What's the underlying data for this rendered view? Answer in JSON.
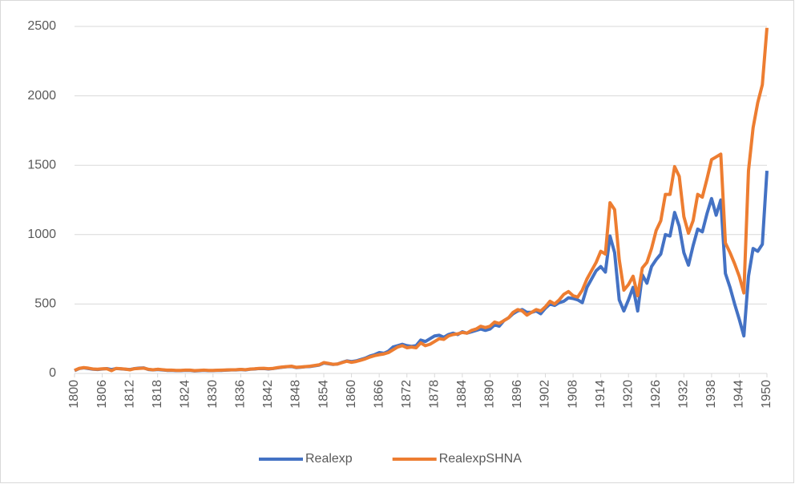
{
  "chart_data": {
    "type": "line",
    "x": [
      1800,
      1801,
      1802,
      1803,
      1804,
      1805,
      1806,
      1807,
      1808,
      1809,
      1810,
      1811,
      1812,
      1813,
      1814,
      1815,
      1816,
      1817,
      1818,
      1819,
      1820,
      1821,
      1822,
      1823,
      1824,
      1825,
      1826,
      1827,
      1828,
      1829,
      1830,
      1831,
      1832,
      1833,
      1834,
      1835,
      1836,
      1837,
      1838,
      1839,
      1840,
      1841,
      1842,
      1843,
      1844,
      1845,
      1846,
      1847,
      1848,
      1849,
      1850,
      1851,
      1852,
      1853,
      1854,
      1855,
      1856,
      1857,
      1858,
      1859,
      1860,
      1861,
      1862,
      1863,
      1864,
      1865,
      1866,
      1867,
      1868,
      1869,
      1870,
      1871,
      1872,
      1873,
      1874,
      1875,
      1876,
      1877,
      1878,
      1879,
      1880,
      1881,
      1882,
      1883,
      1884,
      1885,
      1886,
      1887,
      1888,
      1889,
      1890,
      1891,
      1892,
      1893,
      1894,
      1895,
      1896,
      1897,
      1898,
      1899,
      1900,
      1901,
      1902,
      1903,
      1904,
      1905,
      1906,
      1907,
      1908,
      1909,
      1910,
      1911,
      1912,
      1913,
      1914,
      1915,
      1916,
      1917,
      1918,
      1919,
      1920,
      1921,
      1922,
      1923,
      1924,
      1925,
      1926,
      1927,
      1928,
      1929,
      1930,
      1931,
      1932,
      1933,
      1934,
      1935,
      1936,
      1937,
      1938,
      1939,
      1940,
      1941,
      1942,
      1943,
      1944,
      1945,
      1946,
      1947,
      1948,
      1949,
      1950
    ],
    "xlim": [
      1800,
      1950
    ],
    "xticks": [
      1800,
      1806,
      1812,
      1818,
      1824,
      1830,
      1836,
      1842,
      1848,
      1854,
      1860,
      1866,
      1872,
      1878,
      1884,
      1890,
      1896,
      1902,
      1908,
      1914,
      1920,
      1926,
      1932,
      1938,
      1944,
      1950
    ],
    "ylim": [
      0,
      2500
    ],
    "yticks": [
      0,
      500,
      1000,
      1500,
      2000,
      2500
    ],
    "grid": true,
    "legend": "bottom",
    "series": [
      {
        "name": "Realexp",
        "color": "#4472c4",
        "values": [
          20,
          35,
          40,
          35,
          30,
          28,
          32,
          35,
          28,
          35,
          33,
          30,
          28,
          35,
          38,
          40,
          28,
          25,
          28,
          25,
          22,
          22,
          20,
          20,
          22,
          22,
          18,
          20,
          22,
          20,
          20,
          22,
          22,
          24,
          25,
          25,
          28,
          25,
          30,
          32,
          35,
          35,
          32,
          35,
          40,
          45,
          48,
          50,
          42,
          45,
          48,
          50,
          55,
          60,
          75,
          70,
          65,
          68,
          80,
          90,
          85,
          90,
          100,
          110,
          125,
          135,
          150,
          145,
          160,
          190,
          200,
          210,
          200,
          195,
          200,
          240,
          230,
          250,
          270,
          275,
          260,
          280,
          290,
          280,
          300,
          290,
          300,
          310,
          320,
          310,
          320,
          350,
          340,
          380,
          400,
          430,
          450,
          460,
          440,
          440,
          450,
          430,
          470,
          500,
          490,
          510,
          520,
          545,
          540,
          530,
          510,
          620,
          680,
          740,
          770,
          730,
          990,
          870,
          530,
          450,
          530,
          620,
          450,
          710,
          650,
          770,
          820,
          860,
          1000,
          990,
          1160,
          1060,
          870,
          780,
          920,
          1040,
          1020,
          1150,
          1260,
          1140,
          1250,
          720,
          620,
          500,
          390,
          270,
          700,
          900,
          880,
          930,
          1460
        ]
      },
      {
        "name": "RealexpSHNA",
        "color": "#ed7d31",
        "values": [
          22,
          36,
          42,
          38,
          32,
          30,
          33,
          34,
          20,
          36,
          34,
          31,
          26,
          34,
          36,
          38,
          30,
          26,
          30,
          27,
          24,
          24,
          22,
          22,
          24,
          24,
          20,
          22,
          24,
          22,
          22,
          23,
          24,
          25,
          26,
          27,
          29,
          27,
          31,
          33,
          36,
          37,
          34,
          36,
          42,
          46,
          49,
          52,
          44,
          46,
          49,
          52,
          57,
          62,
          78,
          72,
          66,
          68,
          78,
          88,
          80,
          86,
          95,
          105,
          118,
          128,
          135,
          140,
          150,
          170,
          190,
          200,
          185,
          190,
          185,
          220,
          200,
          210,
          230,
          250,
          245,
          270,
          280,
          285,
          295,
          290,
          310,
          320,
          340,
          330,
          340,
          370,
          360,
          380,
          400,
          440,
          460,
          450,
          420,
          440,
          460,
          450,
          480,
          520,
          500,
          530,
          570,
          590,
          560,
          550,
          600,
          680,
          740,
          800,
          880,
          860,
          1230,
          1180,
          820,
          600,
          640,
          700,
          560,
          760,
          800,
          900,
          1030,
          1100,
          1290,
          1290,
          1490,
          1420,
          1130,
          1010,
          1100,
          1290,
          1270,
          1400,
          1540,
          1560,
          1580,
          940,
          870,
          790,
          700,
          580,
          1460,
          1770,
          1950,
          2080,
          2490
        ]
      }
    ]
  }
}
